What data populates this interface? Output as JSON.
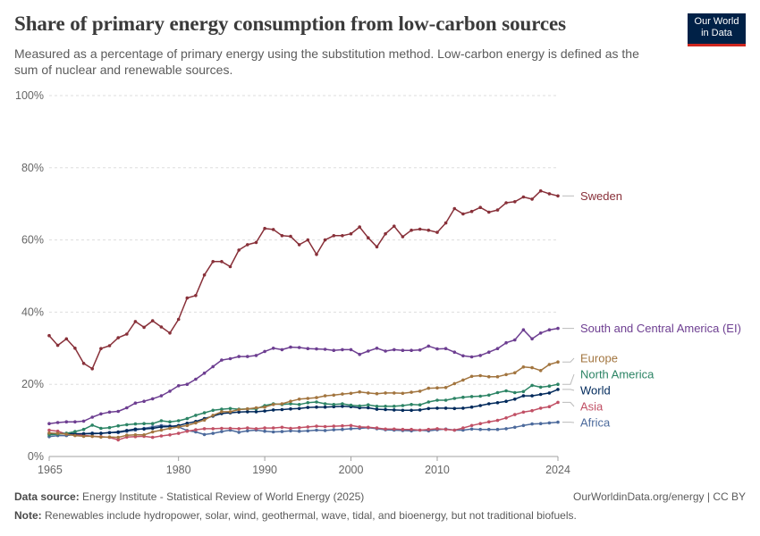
{
  "header": {
    "title": "Share of primary energy consumption from low-carbon sources",
    "subtitle": "Measured as a percentage of primary energy using the substitution method. Low-carbon energy is defined as the sum of nuclear and renewable sources.",
    "logo_line1": "Our World",
    "logo_line2": "in Data"
  },
  "footer": {
    "source_label": "Data source:",
    "source_text": "Energy Institute - Statistical Review of World Energy (2025)",
    "link": "OurWorldinData.org/energy | CC BY",
    "note_label": "Note:",
    "note_text": "Renewables include hydropower, solar, wind, geothermal, wave, tidal, and bioenergy, but not traditional biofuels."
  },
  "chart_data": {
    "type": "line",
    "title": "Share of primary energy consumption from low-carbon sources",
    "xlabel": "",
    "ylabel": "",
    "xlim": [
      1965,
      2024
    ],
    "ylim": [
      0,
      100
    ],
    "x_ticks": [
      1965,
      1980,
      1990,
      2000,
      2010,
      2024
    ],
    "y_ticks": [
      0,
      20,
      40,
      60,
      80,
      100
    ],
    "y_tick_labels": [
      "0%",
      "20%",
      "40%",
      "60%",
      "80%",
      "100%"
    ],
    "grid": "horizontal dashed",
    "legend": "inline labels at right end of lines",
    "colors": {
      "Sweden": "#883039",
      "South and Central America (EI)": "#6d3e91",
      "Europe": "#a2753f",
      "North America": "#2c8465",
      "World": "#00295b",
      "Asia": "#c15065",
      "Africa": "#4c6a9c"
    },
    "series": [
      {
        "name": "Sweden",
        "color": "#883039",
        "values": [
          33.5,
          30.8,
          32.6,
          30.0,
          25.8,
          24.3,
          29.9,
          30.7,
          32.9,
          33.9,
          37.4,
          35.8,
          37.6,
          35.9,
          34.2,
          38.0,
          43.9,
          44.6,
          50.3,
          54.0,
          54.0,
          52.6,
          57.2,
          58.7,
          59.3,
          63.2,
          62.9,
          61.2,
          61.0,
          58.7,
          60.0,
          56.0,
          60.0,
          61.2,
          61.2,
          61.7,
          63.6,
          60.6,
          58.1,
          61.7,
          63.8,
          60.9,
          62.7,
          63.0,
          62.7,
          62.1,
          64.7,
          68.7,
          67.2,
          67.9,
          69.0,
          67.7,
          68.3,
          70.3,
          70.6,
          71.9,
          71.3,
          73.6,
          72.8,
          72.2
        ]
      },
      {
        "name": "South and Central America (EI)",
        "color": "#6d3e91",
        "values": [
          9.1,
          9.4,
          9.6,
          9.6,
          9.8,
          10.9,
          11.8,
          12.3,
          12.5,
          13.5,
          14.8,
          15.3,
          16.0,
          16.8,
          18.1,
          19.6,
          20.0,
          21.4,
          23.1,
          24.9,
          26.7,
          27.1,
          27.7,
          27.7,
          28.0,
          29.1,
          30.0,
          29.6,
          30.3,
          30.2,
          29.9,
          29.8,
          29.7,
          29.4,
          29.6,
          29.6,
          28.3,
          29.2,
          30.0,
          29.2,
          29.6,
          29.4,
          29.4,
          29.5,
          30.6,
          29.8,
          29.9,
          28.9,
          27.9,
          27.6,
          28.0,
          28.9,
          29.9,
          31.5,
          32.3,
          35.1,
          32.6,
          34.2,
          35.1,
          35.5
        ]
      },
      {
        "name": "Europe",
        "color": "#a2753f",
        "values": [
          6.5,
          6.4,
          6.2,
          5.8,
          5.6,
          5.6,
          5.4,
          5.4,
          5.3,
          5.9,
          6.0,
          6.0,
          6.8,
          7.3,
          7.8,
          8.2,
          8.6,
          9.3,
          10.1,
          11.4,
          12.4,
          12.4,
          13.0,
          13.2,
          13.5,
          13.7,
          14.4,
          14.6,
          15.3,
          15.9,
          16.1,
          16.3,
          16.8,
          17.0,
          17.3,
          17.5,
          17.9,
          17.6,
          17.4,
          17.6,
          17.6,
          17.5,
          17.8,
          18.1,
          18.9,
          19.0,
          19.1,
          20.2,
          21.2,
          22.2,
          22.4,
          22.1,
          22.1,
          22.7,
          23.2,
          24.8,
          24.6,
          23.8,
          25.5,
          26.2
        ]
      },
      {
        "name": "North America",
        "color": "#2c8465",
        "values": [
          6.0,
          6.2,
          6.4,
          6.9,
          7.5,
          8.7,
          7.8,
          8.0,
          8.5,
          8.8,
          9.0,
          9.1,
          9.1,
          9.9,
          9.6,
          9.9,
          10.5,
          11.4,
          12.1,
          12.8,
          13.1,
          13.3,
          13.1,
          13.2,
          13.2,
          14.1,
          14.6,
          14.4,
          14.6,
          14.4,
          14.9,
          15.1,
          14.6,
          14.4,
          14.6,
          14.2,
          14.0,
          14.3,
          13.9,
          13.9,
          13.9,
          14.1,
          14.4,
          14.3,
          15.1,
          15.6,
          15.6,
          16.1,
          16.4,
          16.6,
          16.7,
          17.0,
          17.7,
          18.2,
          17.7,
          18.0,
          19.7,
          19.2,
          19.5,
          20.0
        ]
      },
      {
        "name": "World",
        "color": "#00295b",
        "values": [
          6.3,
          6.3,
          6.4,
          6.3,
          6.3,
          6.3,
          6.4,
          6.6,
          6.8,
          7.2,
          7.6,
          7.6,
          7.8,
          8.2,
          8.3,
          8.6,
          9.2,
          9.7,
          10.5,
          11.2,
          11.9,
          12.1,
          12.3,
          12.4,
          12.4,
          12.6,
          12.9,
          13.0,
          13.2,
          13.3,
          13.6,
          13.7,
          13.7,
          13.8,
          13.9,
          13.8,
          13.5,
          13.5,
          13.1,
          13.0,
          12.9,
          12.8,
          12.8,
          12.9,
          13.3,
          13.4,
          13.4,
          13.3,
          13.4,
          13.7,
          14.1,
          14.6,
          14.9,
          15.3,
          15.9,
          16.8,
          16.8,
          17.2,
          17.6,
          18.6
        ]
      },
      {
        "name": "Asia",
        "color": "#c15065",
        "values": [
          7.3,
          7.0,
          6.2,
          6.0,
          5.9,
          5.6,
          5.5,
          5.3,
          4.6,
          5.4,
          5.5,
          5.6,
          5.3,
          5.7,
          6.0,
          6.4,
          7.0,
          7.4,
          7.7,
          7.7,
          7.8,
          7.8,
          7.7,
          7.9,
          7.7,
          7.9,
          7.9,
          8.1,
          7.8,
          8.0,
          8.2,
          8.4,
          8.3,
          8.4,
          8.5,
          8.6,
          8.2,
          8.1,
          7.9,
          7.6,
          7.6,
          7.5,
          7.5,
          7.3,
          7.5,
          7.7,
          7.5,
          7.3,
          7.9,
          8.6,
          9.1,
          9.6,
          10.0,
          10.7,
          11.6,
          12.3,
          12.7,
          13.4,
          13.8,
          15.0
        ]
      },
      {
        "name": "Africa",
        "color": "#4c6a9c",
        "values": [
          5.5,
          5.8,
          5.8,
          6.1,
          6.3,
          6.5,
          6.4,
          6.6,
          6.6,
          7.0,
          7.3,
          7.8,
          8.2,
          8.6,
          8.5,
          8.2,
          7.2,
          6.8,
          6.1,
          6.4,
          6.9,
          7.3,
          6.7,
          7.1,
          7.3,
          7.0,
          6.8,
          6.9,
          7.1,
          7.0,
          7.1,
          7.3,
          7.2,
          7.4,
          7.5,
          7.7,
          7.8,
          8.0,
          7.7,
          7.4,
          7.3,
          7.2,
          7.1,
          7.3,
          7.1,
          7.4,
          7.6,
          7.3,
          7.3,
          7.6,
          7.5,
          7.5,
          7.5,
          7.7,
          8.1,
          8.6,
          9.0,
          9.1,
          9.3,
          9.5
        ]
      }
    ]
  }
}
